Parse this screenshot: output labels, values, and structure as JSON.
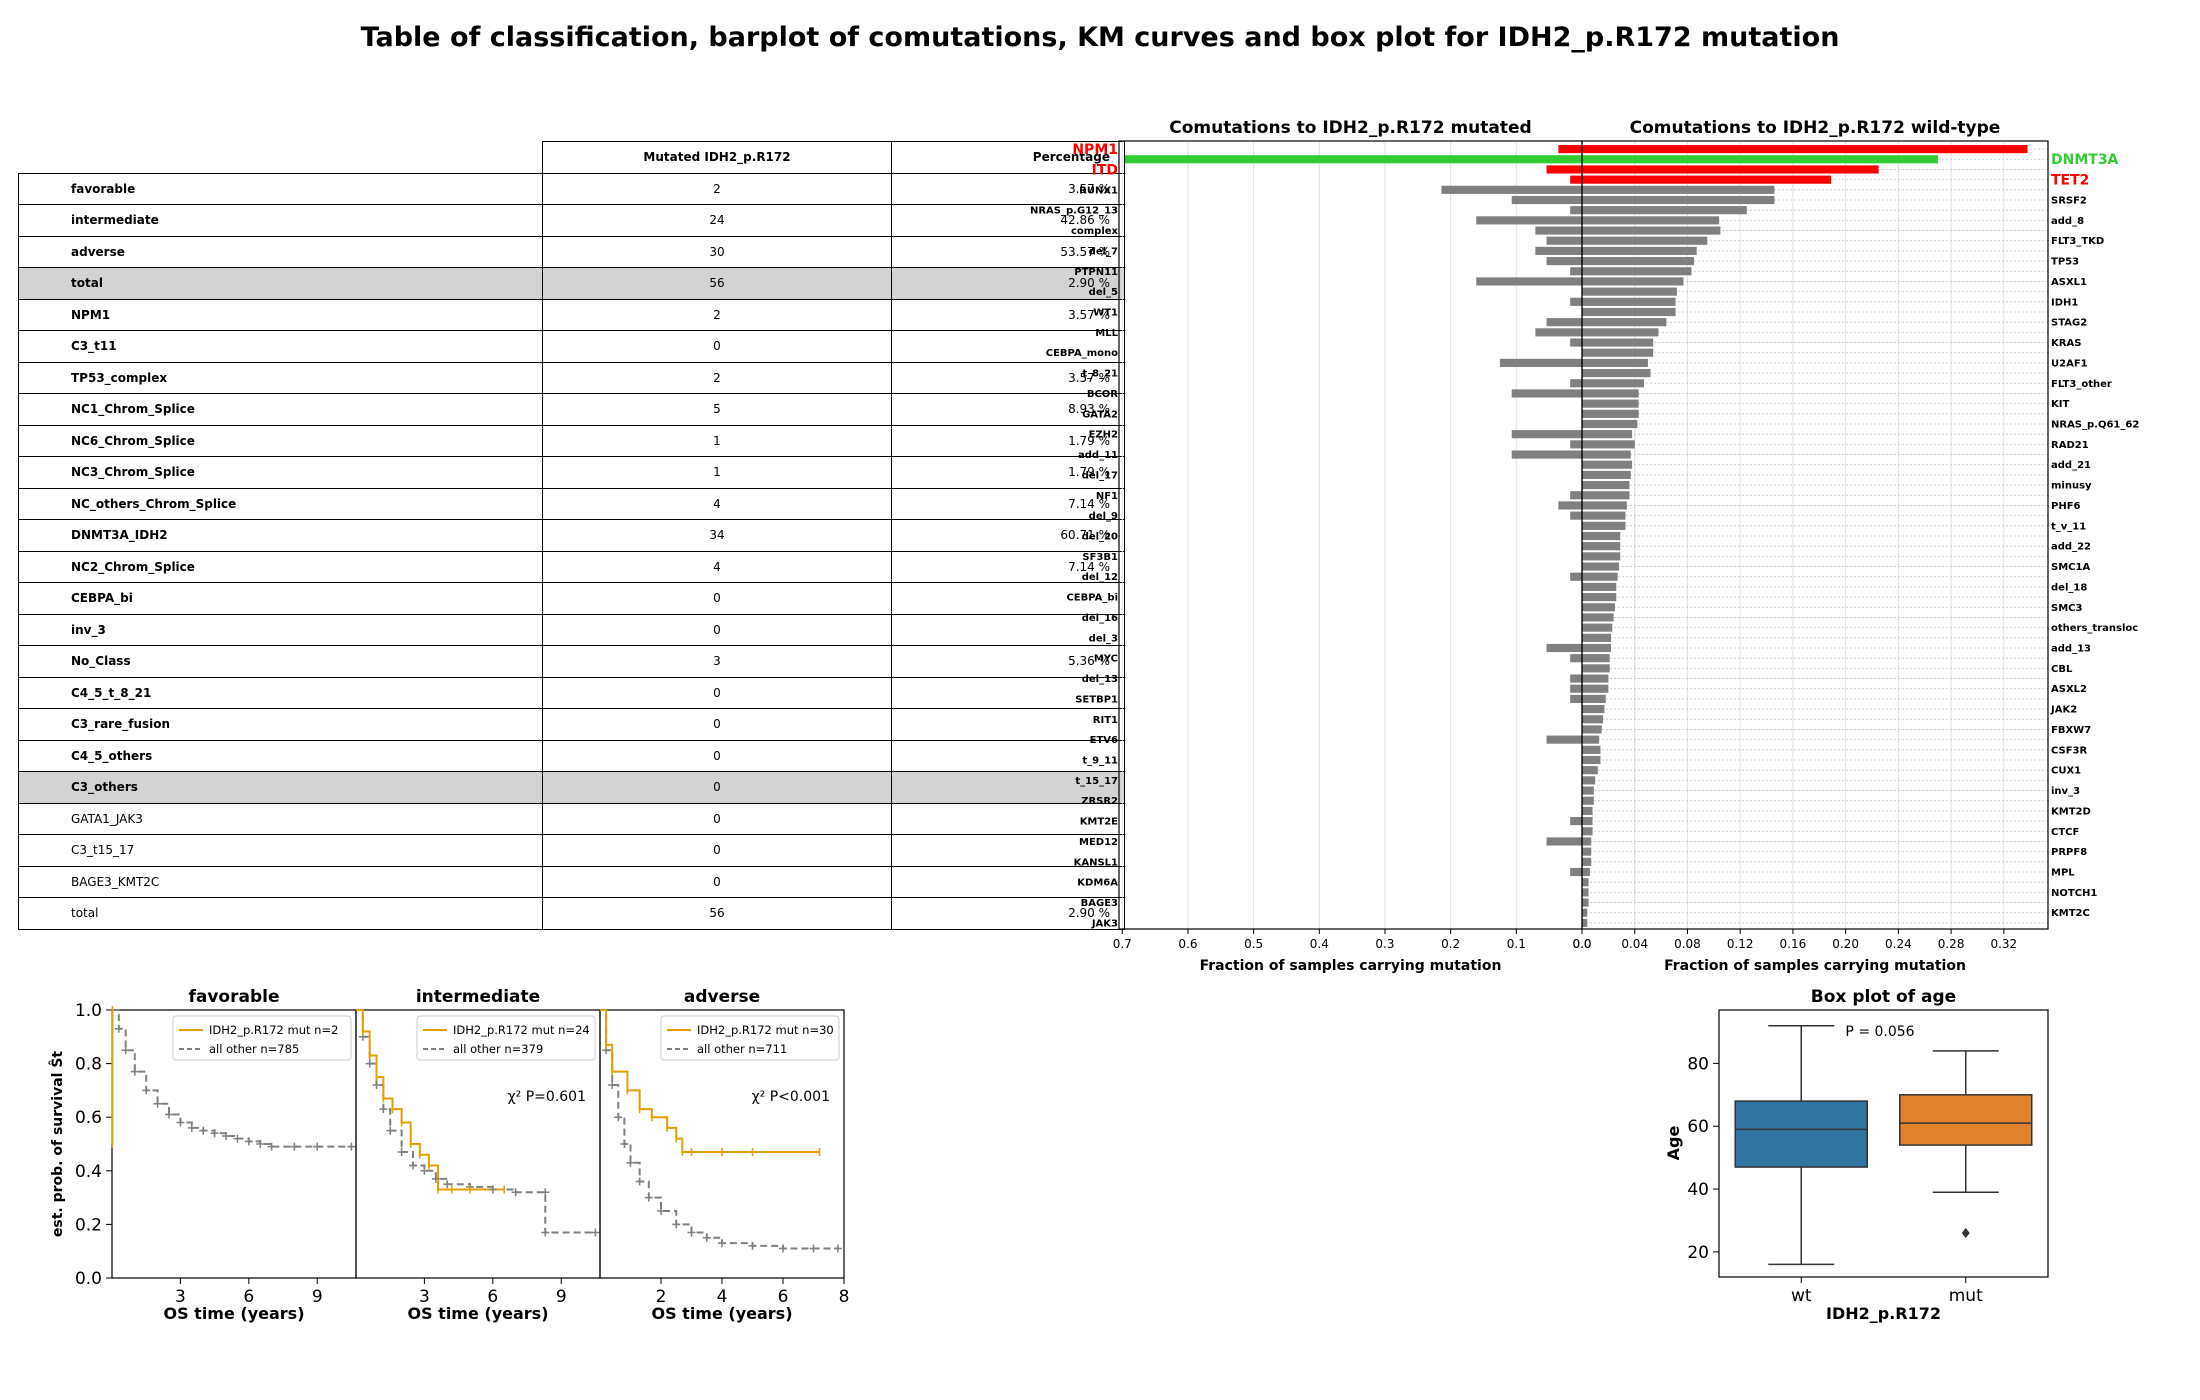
{
  "page_title": "Table of classification, barplot of comutations, KM curves and box plot for IDH2_p.R172 mutation",
  "table": {
    "headers": [
      "",
      "Mutated IDH2_p.R172",
      "Percentage"
    ],
    "rows": [
      {
        "label": "favorable",
        "mutated": "2",
        "percentage": "3.57 %",
        "bold": true,
        "grey": false
      },
      {
        "label": "intermediate",
        "mutated": "24",
        "percentage": "42.86 %",
        "bold": true,
        "grey": false
      },
      {
        "label": "adverse",
        "mutated": "30",
        "percentage": "53.57 %",
        "bold": true,
        "grey": false
      },
      {
        "label": "total",
        "mutated": "56",
        "percentage": "2.90 %",
        "bold": true,
        "grey": true
      },
      {
        "label": "NPM1",
        "mutated": "2",
        "percentage": "3.57 %",
        "bold": true,
        "grey": false
      },
      {
        "label": "C3_t11",
        "mutated": "0",
        "percentage": "",
        "bold": true,
        "grey": false
      },
      {
        "label": "TP53_complex",
        "mutated": "2",
        "percentage": "3.57 %",
        "bold": true,
        "grey": false
      },
      {
        "label": "NC1_Chrom_Splice",
        "mutated": "5",
        "percentage": "8.93 %",
        "bold": true,
        "grey": false
      },
      {
        "label": "NC6_Chrom_Splice",
        "mutated": "1",
        "percentage": "1.79 %",
        "bold": true,
        "grey": false
      },
      {
        "label": "NC3_Chrom_Splice",
        "mutated": "1",
        "percentage": "1.79 %",
        "bold": true,
        "grey": false
      },
      {
        "label": "NC_others_Chrom_Splice",
        "mutated": "4",
        "percentage": "7.14 %",
        "bold": true,
        "grey": false
      },
      {
        "label": "DNMT3A_IDH2",
        "mutated": "34",
        "percentage": "60.71 %",
        "bold": true,
        "grey": false
      },
      {
        "label": "NC2_Chrom_Splice",
        "mutated": "4",
        "percentage": "7.14 %",
        "bold": true,
        "grey": false
      },
      {
        "label": "CEBPA_bi",
        "mutated": "0",
        "percentage": "",
        "bold": true,
        "grey": false
      },
      {
        "label": "inv_3",
        "mutated": "0",
        "percentage": "",
        "bold": true,
        "grey": false
      },
      {
        "label": "No_Class",
        "mutated": "3",
        "percentage": "5.36 %",
        "bold": true,
        "grey": false
      },
      {
        "label": "C4_5_t_8_21",
        "mutated": "0",
        "percentage": "",
        "bold": true,
        "grey": false
      },
      {
        "label": "C3_rare_fusion",
        "mutated": "0",
        "percentage": "",
        "bold": true,
        "grey": false
      },
      {
        "label": "C4_5_others",
        "mutated": "0",
        "percentage": "",
        "bold": true,
        "grey": false
      },
      {
        "label": "C3_others",
        "mutated": "0",
        "percentage": "",
        "bold": true,
        "grey": true
      },
      {
        "label": "GATA1_JAK3",
        "mutated": "0",
        "percentage": "",
        "bold": false,
        "grey": false
      },
      {
        "label": "C3_t15_17",
        "mutated": "0",
        "percentage": "",
        "bold": false,
        "grey": false
      },
      {
        "label": "BAGE3_KMT2C",
        "mutated": "0",
        "percentage": "",
        "bold": false,
        "grey": false
      },
      {
        "label": "total",
        "mutated": "56",
        "percentage": "2.90 %",
        "bold": false,
        "grey": false
      }
    ]
  },
  "colors": {
    "red": "#ff0000",
    "green": "#32cd32",
    "grey": "#808080",
    "orange": "#e69f00",
    "box_wt": "#3274a1",
    "box_mut": "#e1812c",
    "grid": "#b0c4de"
  },
  "chart_data": [
    {
      "type": "bar",
      "orientation": "horizontal",
      "title_left": "Comutations to IDH2_p.R172 mutated",
      "title_right": "Comutations to IDH2_p.R172 wild-type",
      "xlabel_left": "Fraction of samples carrying mutation",
      "xlabel_right": "Fraction of samples carrying mutation",
      "left_ticks": [
        "0.7",
        "0.6",
        "0.5",
        "0.4",
        "0.3",
        "0.2",
        "0.1",
        "0.0"
      ],
      "right_ticks": [
        "0.0",
        "0.04",
        "0.08",
        "0.12",
        "0.16",
        "0.20",
        "0.24",
        "0.28",
        "0.32"
      ],
      "left_xlim": [
        0.7,
        0.0
      ],
      "right_xlim": [
        0.0,
        0.32
      ],
      "highlight_red": [
        "NPM1",
        "ITD",
        "TET2"
      ],
      "highlight_green": [
        "DNMT3A"
      ],
      "genes": [
        "NPM1",
        "DNMT3A",
        "ITD",
        "TET2",
        "RUNX1",
        "SRSF2",
        "NRAS_p.G12_13",
        "add_8",
        "complex",
        "FLT3_TKD",
        "del_7",
        "TP53",
        "PTPN11",
        "ASXL1",
        "del_5",
        "IDH1",
        "WT1",
        "STAG2",
        "MLL",
        "KRAS",
        "CEBPA_mono",
        "U2AF1",
        "t_8_21",
        "FLT3_other",
        "BCOR",
        "KIT",
        "GATA2",
        "NRAS_p.Q61_62",
        "EZH2",
        "RAD21",
        "add_11",
        "add_21",
        "del_17",
        "minusy",
        "NF1",
        "PHF6",
        "del_9",
        "t_v_11",
        "del_20",
        "add_22",
        "SF3B1",
        "SMC1A",
        "del_12",
        "del_18",
        "CEBPA_bi",
        "SMC3",
        "del_16",
        "others_transloc",
        "del_3",
        "add_13",
        "MYC",
        "CBL",
        "del_13",
        "ASXL2",
        "SETBP1",
        "JAK2",
        "RIT1",
        "FBXW7",
        "ETV6",
        "CSF3R",
        "t_9_11",
        "CUX1",
        "t_15_17",
        "inv_3",
        "ZRSR2",
        "KMT2D",
        "KMT2E",
        "CTCF",
        "MED12",
        "PRPF8",
        "KANSL1",
        "MPL",
        "KDM6A",
        "NOTCH1",
        "BAGE3",
        "KMT2C",
        "JAK3"
      ],
      "mutated": [
        0.036,
        0.696,
        0.054,
        0.018,
        0.214,
        0.107,
        0.018,
        0.161,
        0.071,
        0.054,
        0.071,
        0.054,
        0.018,
        0.161,
        0.0,
        0.018,
        0.0,
        0.054,
        0.071,
        0.018,
        0.0,
        0.125,
        0.0,
        0.018,
        0.107,
        0.0,
        0.0,
        0.0,
        0.107,
        0.018,
        0.107,
        0.0,
        0.0,
        0.0,
        0.018,
        0.036,
        0.018,
        0.0,
        0.0,
        0.0,
        0.0,
        0.0,
        0.018,
        0.0,
        0.0,
        0.0,
        0.0,
        0.0,
        0.0,
        0.054,
        0.018,
        0.0,
        0.018,
        0.018,
        0.018,
        0.0,
        0.0,
        0.0,
        0.054,
        0.0,
        0.0,
        0.0,
        0.0,
        0.0,
        0.0,
        0.0,
        0.018,
        0.0,
        0.054,
        0.0,
        0.0,
        0.018,
        0.0,
        0.0,
        0.0,
        0.0,
        0.0
      ],
      "wild_type": [
        0.338,
        0.27,
        0.225,
        0.189,
        0.146,
        0.146,
        0.125,
        0.104,
        0.105,
        0.095,
        0.087,
        0.085,
        0.083,
        0.077,
        0.072,
        0.071,
        0.071,
        0.064,
        0.058,
        0.054,
        0.054,
        0.05,
        0.052,
        0.047,
        0.043,
        0.043,
        0.043,
        0.042,
        0.038,
        0.04,
        0.037,
        0.038,
        0.037,
        0.036,
        0.036,
        0.034,
        0.033,
        0.033,
        0.029,
        0.029,
        0.029,
        0.028,
        0.027,
        0.026,
        0.026,
        0.025,
        0.024,
        0.023,
        0.022,
        0.022,
        0.021,
        0.021,
        0.02,
        0.02,
        0.018,
        0.017,
        0.016,
        0.015,
        0.013,
        0.014,
        0.014,
        0.012,
        0.01,
        0.009,
        0.009,
        0.008,
        0.008,
        0.008,
        0.007,
        0.007,
        0.007,
        0.006,
        0.005,
        0.005,
        0.005,
        0.004,
        0.004
      ]
    },
    {
      "type": "line",
      "subtype": "kaplan-meier",
      "ylabel": "est. prob. of survival Ŝt",
      "xlabel": "OS time (years)",
      "ylim": [
        0.0,
        1.0
      ],
      "yticks": [
        "0.0",
        "0.2",
        "0.4",
        "0.6",
        "0.8",
        "1.0"
      ],
      "panels": [
        {
          "title": "favorable",
          "xticks": [
            "3",
            "6",
            "9"
          ],
          "xlim": [
            0,
            10.7
          ],
          "stat": "",
          "legend": [
            "IDH2_p.R172  mut n=2",
            "all other  n=785"
          ],
          "mut": {
            "x": [
              0,
              0.02,
              0.02
            ],
            "y": [
              1.0,
              1.0,
              0.5
            ]
          },
          "other": {
            "x": [
              0,
              0.3,
              0.6,
              1.0,
              1.5,
              2.0,
              2.5,
              3.0,
              3.5,
              4.0,
              4.5,
              5.0,
              5.5,
              6.0,
              6.5,
              7.0,
              8.0,
              9.0,
              10.5
            ],
            "y": [
              1.0,
              0.93,
              0.85,
              0.77,
              0.7,
              0.65,
              0.61,
              0.58,
              0.56,
              0.55,
              0.54,
              0.53,
              0.52,
              0.51,
              0.5,
              0.49,
              0.49,
              0.49,
              0.49
            ]
          }
        },
        {
          "title": "intermediate",
          "xticks": [
            "3",
            "6",
            "9"
          ],
          "xlim": [
            0,
            10.7
          ],
          "stat": "χ² P=0.601",
          "legend": [
            "IDH2_p.R172  mut n=24",
            "all other  n=379"
          ],
          "mut": {
            "x": [
              0,
              0.3,
              0.6,
              0.9,
              1.2,
              1.6,
              2.0,
              2.4,
              2.8,
              3.2,
              3.6,
              4.2,
              5.0,
              6.5
            ],
            "y": [
              1.0,
              0.92,
              0.83,
              0.75,
              0.67,
              0.63,
              0.58,
              0.5,
              0.46,
              0.42,
              0.33,
              0.33,
              0.33,
              0.33
            ]
          },
          "other": {
            "x": [
              0,
              0.3,
              0.6,
              0.9,
              1.2,
              1.5,
              2.0,
              2.5,
              3.0,
              3.5,
              4.0,
              5.0,
              6.0,
              7.0,
              8.3,
              8.3,
              10.5
            ],
            "y": [
              1.0,
              0.9,
              0.8,
              0.72,
              0.63,
              0.55,
              0.47,
              0.42,
              0.4,
              0.37,
              0.35,
              0.34,
              0.33,
              0.32,
              0.32,
              0.17,
              0.17
            ]
          }
        },
        {
          "title": "adverse",
          "xticks": [
            "2",
            "4",
            "6",
            "8"
          ],
          "xlim": [
            0,
            8.0
          ],
          "stat": "χ² P<0.001",
          "legend": [
            "IDH2_p.R172  mut n=30",
            "all other  n=711"
          ],
          "mut": {
            "x": [
              0,
              0.2,
              0.4,
              0.9,
              1.3,
              1.7,
              2.2,
              2.5,
              2.7,
              3.0,
              4.0,
              5.0,
              7.2
            ],
            "y": [
              1.0,
              0.87,
              0.77,
              0.7,
              0.63,
              0.6,
              0.56,
              0.52,
              0.47,
              0.47,
              0.47,
              0.47,
              0.47
            ]
          },
          "other": {
            "x": [
              0,
              0.2,
              0.4,
              0.6,
              0.8,
              1.0,
              1.3,
              1.6,
              2.0,
              2.5,
              3.0,
              3.5,
              4.0,
              5.0,
              6.0,
              7.0,
              7.8
            ],
            "y": [
              1.0,
              0.85,
              0.72,
              0.6,
              0.5,
              0.43,
              0.36,
              0.3,
              0.25,
              0.2,
              0.17,
              0.15,
              0.13,
              0.12,
              0.11,
              0.11,
              0.11
            ]
          }
        }
      ]
    },
    {
      "type": "box",
      "title": "Box plot of age",
      "xlabel": "IDH2_p.R172",
      "ylabel": "Age",
      "categories": [
        "wt",
        "mut"
      ],
      "ylim": [
        12,
        97
      ],
      "yticks": [
        20,
        40,
        60,
        80
      ],
      "annotation": "P = 0.056",
      "boxes": [
        {
          "name": "wt",
          "min": 16,
          "q1": 47,
          "median": 59,
          "q3": 68,
          "max": 92,
          "outliers": []
        },
        {
          "name": "mut",
          "min": 39,
          "q1": 54,
          "median": 61,
          "q3": 70,
          "max": 84,
          "outliers": [
            26
          ]
        }
      ]
    }
  ]
}
